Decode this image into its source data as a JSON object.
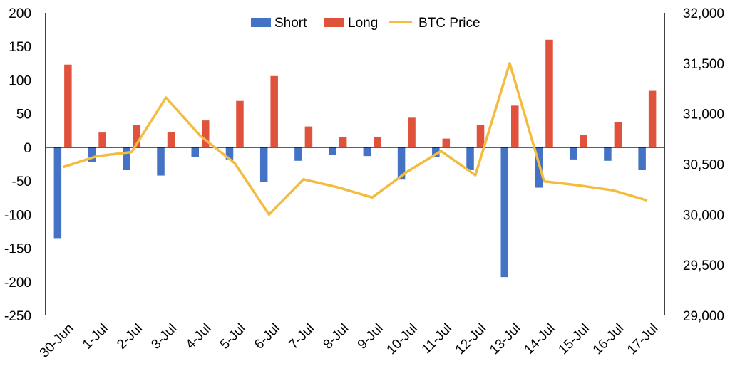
{
  "chart_data": {
    "type": "bar",
    "categories": [
      "30-Jun",
      "1-Jul",
      "2-Jul",
      "3-Jul",
      "4-Jul",
      "5-Jul",
      "6-Jul",
      "7-Jul",
      "8-Jul",
      "9-Jul",
      "10-Jul",
      "11-Jul",
      "12-Jul",
      "13-Jul",
      "14-Jul",
      "15-Jul",
      "16-Jul",
      "17-Jul"
    ],
    "series": [
      {
        "name": "Short",
        "type": "bar",
        "axis": "left",
        "color": "#4472c4",
        "values": [
          -135,
          -22,
          -34,
          -42,
          -14,
          -18,
          -51,
          -20,
          -11,
          -13,
          -48,
          -14,
          -34,
          -193,
          -60,
          -18,
          -20,
          -34
        ]
      },
      {
        "name": "Long",
        "type": "bar",
        "axis": "left",
        "color": "#e0523c",
        "values": [
          123,
          22,
          33,
          23,
          40,
          69,
          106,
          31,
          15,
          15,
          44,
          13,
          33,
          62,
          160,
          18,
          38,
          84
        ]
      },
      {
        "name": "BTC Price",
        "type": "line",
        "axis": "right",
        "color": "#f4bc3e",
        "values": [
          30470,
          30580,
          30620,
          31160,
          30780,
          30510,
          30000,
          30350,
          30270,
          30170,
          30420,
          30630,
          30390,
          31500,
          30330,
          30290,
          30240,
          30140
        ]
      }
    ],
    "left_axis": {
      "min": -250,
      "max": 200,
      "step": 50,
      "tick_labels": [
        "200",
        "150",
        "100",
        "50",
        "0",
        "-50",
        "-100",
        "-150",
        "-200",
        "-250"
      ]
    },
    "right_axis": {
      "min": 29000,
      "max": 32000,
      "step": 500,
      "tick_labels": [
        "32,000",
        "31,500",
        "31,000",
        "30,500",
        "30,000",
        "29,500",
        "29,000"
      ]
    },
    "legend": {
      "position": "top-center",
      "items": [
        "Short",
        "Long",
        "BTC Price"
      ]
    },
    "grid": false,
    "title": "",
    "xlabel": "",
    "ylabel": ""
  }
}
